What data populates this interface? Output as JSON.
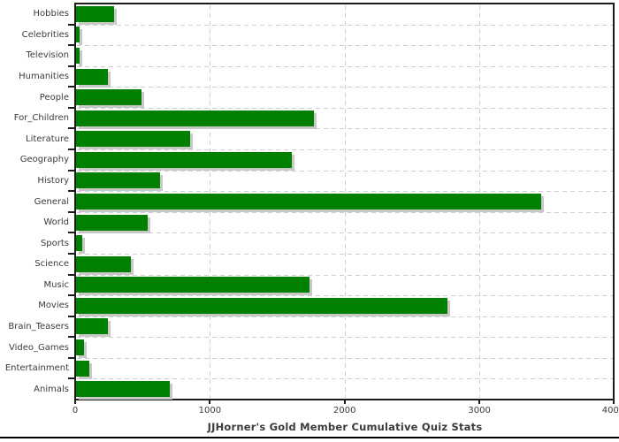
{
  "chart_data": {
    "type": "bar",
    "orientation": "horizontal",
    "title": "JJHorner's Gold Member Cumulative Quiz Stats",
    "categories": [
      "Hobbies",
      "Celebrities",
      "Television",
      "Humanities",
      "People",
      "For_Children",
      "Literature",
      "Geography",
      "History",
      "General",
      "World",
      "Sports",
      "Science",
      "Music",
      "Movies",
      "Brain_Teasers",
      "Video_Games",
      "Entertainment",
      "Animals"
    ],
    "values": [
      290,
      35,
      35,
      245,
      490,
      1770,
      850,
      1610,
      630,
      3460,
      540,
      50,
      415,
      1740,
      2760,
      245,
      65,
      105,
      700
    ],
    "xlabel": "",
    "ylabel": "",
    "xlim": [
      0,
      4000
    ],
    "x_ticks": [
      0,
      1000,
      2000,
      3000,
      4000
    ],
    "x_tick_labels": [
      "0",
      "1000",
      "2000",
      "3000",
      "4000"
    ],
    "grid": true,
    "legend": "none",
    "colors": {
      "bar": "#008000",
      "bar_shadow": "#c8c8c8",
      "gridline": "#cfcfcf",
      "axis": "#1c1c1c",
      "text": "#3b3b3b",
      "background": "#ffffff",
      "bottom_rule": "#000000"
    }
  }
}
